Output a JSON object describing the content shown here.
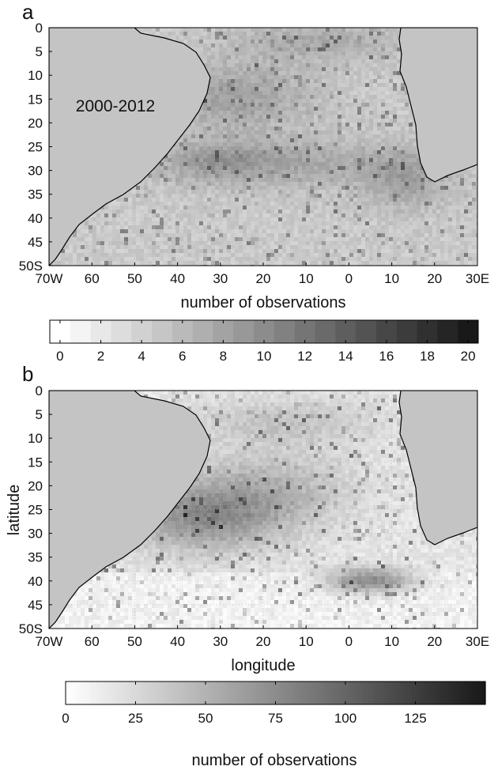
{
  "colors": {
    "land": "#c4c4c4",
    "ocean_base": "#ffffff",
    "frame": "#000000",
    "dot_grid": "#b8b8b8"
  },
  "panels": [
    {
      "letter": "a",
      "period_label": "2000-2012",
      "lat_ticks": [
        "0",
        "5",
        "10",
        "15",
        "20",
        "25",
        "30",
        "35",
        "40",
        "45",
        "50S"
      ],
      "lon_ticks": [
        "70W",
        "60",
        "50",
        "40",
        "30",
        "20",
        "10",
        "0",
        "10",
        "20",
        "30E"
      ],
      "colorbar": {
        "title": "number of observations",
        "ticks": [
          "0",
          "2",
          "4",
          "6",
          "8",
          "10",
          "12",
          "14",
          "16",
          "18",
          "20"
        ],
        "min": 0,
        "max": 20,
        "levels": 21
      }
    },
    {
      "letter": "b",
      "ylabel": "latitude",
      "xlabel": "longitude",
      "lat_ticks": [
        "0",
        "5",
        "10",
        "15",
        "20",
        "25",
        "30",
        "35",
        "40",
        "45",
        "50S"
      ],
      "lon_ticks": [
        "70W",
        "60",
        "50",
        "40",
        "30",
        "20",
        "10",
        "0",
        "10",
        "20",
        "30E"
      ],
      "colorbar": {
        "title": "number of observations",
        "ticks": [
          "0",
          "25",
          "50",
          "75",
          "100",
          "125"
        ],
        "tick_values": [
          0,
          25,
          50,
          75,
          100,
          125
        ],
        "min": 0,
        "max": 150,
        "levels": 150
      }
    }
  ]
}
